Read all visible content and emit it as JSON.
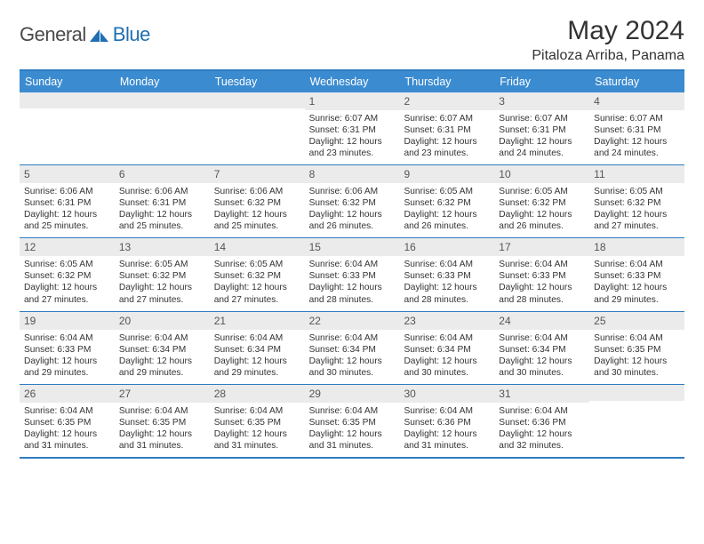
{
  "logo": {
    "text_general": "General",
    "text_blue": "Blue"
  },
  "title": "May 2024",
  "location": "Pitaloza Arriba, Panama",
  "colors": {
    "header_bg": "#3b8bd0",
    "header_text": "#ffffff",
    "rule": "#2f7cc0",
    "daynum_bg": "#ebebeb",
    "daynum_text": "#555555",
    "body_text": "#333333",
    "logo_gray": "#4a4a4a",
    "logo_blue": "#1f6fb2"
  },
  "weekdays": [
    "Sunday",
    "Monday",
    "Tuesday",
    "Wednesday",
    "Thursday",
    "Friday",
    "Saturday"
  ],
  "weeks": [
    [
      {
        "num": "",
        "sunrise": "",
        "sunset": "",
        "daylight": ""
      },
      {
        "num": "",
        "sunrise": "",
        "sunset": "",
        "daylight": ""
      },
      {
        "num": "",
        "sunrise": "",
        "sunset": "",
        "daylight": ""
      },
      {
        "num": "1",
        "sunrise": "Sunrise: 6:07 AM",
        "sunset": "Sunset: 6:31 PM",
        "daylight": "Daylight: 12 hours and 23 minutes."
      },
      {
        "num": "2",
        "sunrise": "Sunrise: 6:07 AM",
        "sunset": "Sunset: 6:31 PM",
        "daylight": "Daylight: 12 hours and 23 minutes."
      },
      {
        "num": "3",
        "sunrise": "Sunrise: 6:07 AM",
        "sunset": "Sunset: 6:31 PM",
        "daylight": "Daylight: 12 hours and 24 minutes."
      },
      {
        "num": "4",
        "sunrise": "Sunrise: 6:07 AM",
        "sunset": "Sunset: 6:31 PM",
        "daylight": "Daylight: 12 hours and 24 minutes."
      }
    ],
    [
      {
        "num": "5",
        "sunrise": "Sunrise: 6:06 AM",
        "sunset": "Sunset: 6:31 PM",
        "daylight": "Daylight: 12 hours and 25 minutes."
      },
      {
        "num": "6",
        "sunrise": "Sunrise: 6:06 AM",
        "sunset": "Sunset: 6:31 PM",
        "daylight": "Daylight: 12 hours and 25 minutes."
      },
      {
        "num": "7",
        "sunrise": "Sunrise: 6:06 AM",
        "sunset": "Sunset: 6:32 PM",
        "daylight": "Daylight: 12 hours and 25 minutes."
      },
      {
        "num": "8",
        "sunrise": "Sunrise: 6:06 AM",
        "sunset": "Sunset: 6:32 PM",
        "daylight": "Daylight: 12 hours and 26 minutes."
      },
      {
        "num": "9",
        "sunrise": "Sunrise: 6:05 AM",
        "sunset": "Sunset: 6:32 PM",
        "daylight": "Daylight: 12 hours and 26 minutes."
      },
      {
        "num": "10",
        "sunrise": "Sunrise: 6:05 AM",
        "sunset": "Sunset: 6:32 PM",
        "daylight": "Daylight: 12 hours and 26 minutes."
      },
      {
        "num": "11",
        "sunrise": "Sunrise: 6:05 AM",
        "sunset": "Sunset: 6:32 PM",
        "daylight": "Daylight: 12 hours and 27 minutes."
      }
    ],
    [
      {
        "num": "12",
        "sunrise": "Sunrise: 6:05 AM",
        "sunset": "Sunset: 6:32 PM",
        "daylight": "Daylight: 12 hours and 27 minutes."
      },
      {
        "num": "13",
        "sunrise": "Sunrise: 6:05 AM",
        "sunset": "Sunset: 6:32 PM",
        "daylight": "Daylight: 12 hours and 27 minutes."
      },
      {
        "num": "14",
        "sunrise": "Sunrise: 6:05 AM",
        "sunset": "Sunset: 6:32 PM",
        "daylight": "Daylight: 12 hours and 27 minutes."
      },
      {
        "num": "15",
        "sunrise": "Sunrise: 6:04 AM",
        "sunset": "Sunset: 6:33 PM",
        "daylight": "Daylight: 12 hours and 28 minutes."
      },
      {
        "num": "16",
        "sunrise": "Sunrise: 6:04 AM",
        "sunset": "Sunset: 6:33 PM",
        "daylight": "Daylight: 12 hours and 28 minutes."
      },
      {
        "num": "17",
        "sunrise": "Sunrise: 6:04 AM",
        "sunset": "Sunset: 6:33 PM",
        "daylight": "Daylight: 12 hours and 28 minutes."
      },
      {
        "num": "18",
        "sunrise": "Sunrise: 6:04 AM",
        "sunset": "Sunset: 6:33 PM",
        "daylight": "Daylight: 12 hours and 29 minutes."
      }
    ],
    [
      {
        "num": "19",
        "sunrise": "Sunrise: 6:04 AM",
        "sunset": "Sunset: 6:33 PM",
        "daylight": "Daylight: 12 hours and 29 minutes."
      },
      {
        "num": "20",
        "sunrise": "Sunrise: 6:04 AM",
        "sunset": "Sunset: 6:34 PM",
        "daylight": "Daylight: 12 hours and 29 minutes."
      },
      {
        "num": "21",
        "sunrise": "Sunrise: 6:04 AM",
        "sunset": "Sunset: 6:34 PM",
        "daylight": "Daylight: 12 hours and 29 minutes."
      },
      {
        "num": "22",
        "sunrise": "Sunrise: 6:04 AM",
        "sunset": "Sunset: 6:34 PM",
        "daylight": "Daylight: 12 hours and 30 minutes."
      },
      {
        "num": "23",
        "sunrise": "Sunrise: 6:04 AM",
        "sunset": "Sunset: 6:34 PM",
        "daylight": "Daylight: 12 hours and 30 minutes."
      },
      {
        "num": "24",
        "sunrise": "Sunrise: 6:04 AM",
        "sunset": "Sunset: 6:34 PM",
        "daylight": "Daylight: 12 hours and 30 minutes."
      },
      {
        "num": "25",
        "sunrise": "Sunrise: 6:04 AM",
        "sunset": "Sunset: 6:35 PM",
        "daylight": "Daylight: 12 hours and 30 minutes."
      }
    ],
    [
      {
        "num": "26",
        "sunrise": "Sunrise: 6:04 AM",
        "sunset": "Sunset: 6:35 PM",
        "daylight": "Daylight: 12 hours and 31 minutes."
      },
      {
        "num": "27",
        "sunrise": "Sunrise: 6:04 AM",
        "sunset": "Sunset: 6:35 PM",
        "daylight": "Daylight: 12 hours and 31 minutes."
      },
      {
        "num": "28",
        "sunrise": "Sunrise: 6:04 AM",
        "sunset": "Sunset: 6:35 PM",
        "daylight": "Daylight: 12 hours and 31 minutes."
      },
      {
        "num": "29",
        "sunrise": "Sunrise: 6:04 AM",
        "sunset": "Sunset: 6:35 PM",
        "daylight": "Daylight: 12 hours and 31 minutes."
      },
      {
        "num": "30",
        "sunrise": "Sunrise: 6:04 AM",
        "sunset": "Sunset: 6:36 PM",
        "daylight": "Daylight: 12 hours and 31 minutes."
      },
      {
        "num": "31",
        "sunrise": "Sunrise: 6:04 AM",
        "sunset": "Sunset: 6:36 PM",
        "daylight": "Daylight: 12 hours and 32 minutes."
      },
      {
        "num": "",
        "sunrise": "",
        "sunset": "",
        "daylight": ""
      }
    ]
  ]
}
